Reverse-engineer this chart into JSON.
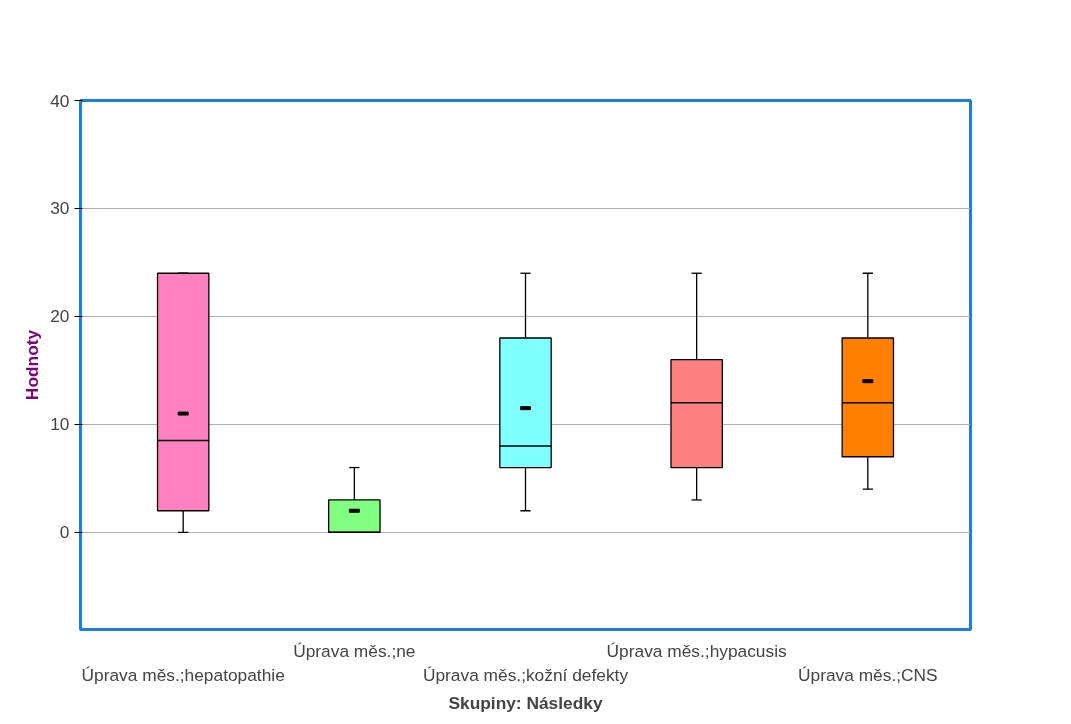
{
  "chart_data": {
    "type": "box",
    "xlabel": "Skupiny: Následky",
    "ylabel": "Hodnoty",
    "categories": [
      "Úprava měs.;hepatopathie",
      "Úprava měs.;ne",
      "Úprava měs.;kožní defekty",
      "Úprava měs.;hypacusis",
      "Úprava měs.;CNS"
    ],
    "colors": [
      "#ff80c0",
      "#80ff80",
      "#80ffff",
      "#ff8080",
      "#ff8000"
    ],
    "boxes": [
      {
        "low": 0,
        "q1": 2,
        "median": 8.5,
        "q3": 24,
        "high": 24,
        "mean": 11
      },
      {
        "low": 0,
        "q1": 0,
        "median": 0,
        "q3": 3,
        "high": 6,
        "mean": 2
      },
      {
        "low": 2,
        "q1": 6,
        "median": 8,
        "q3": 18,
        "high": 24,
        "mean": 11.5
      },
      {
        "low": 3,
        "q1": 6,
        "median": 12,
        "q3": 16,
        "high": 24
      },
      {
        "low": 4,
        "q1": 7,
        "median": 12,
        "q3": 18,
        "high": 24,
        "mean": 14
      }
    ],
    "ylim": [
      -9,
      40
    ],
    "yticks": [
      0,
      10,
      20,
      30,
      40
    ],
    "grid": "y"
  }
}
